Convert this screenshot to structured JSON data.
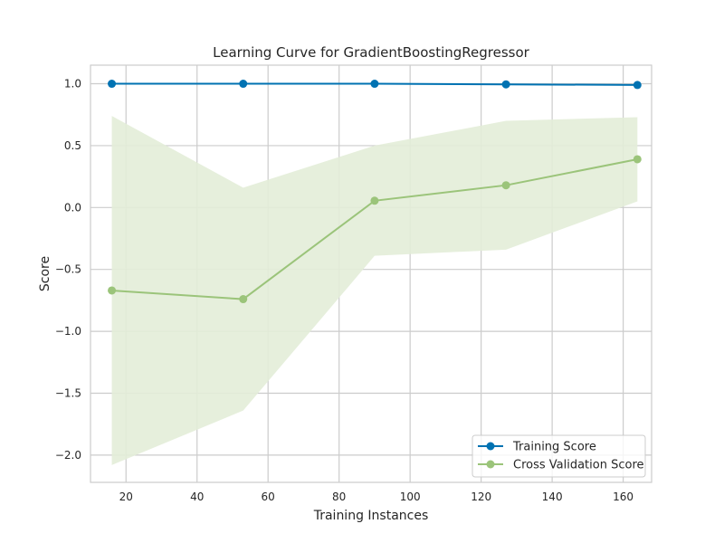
{
  "chart_data": {
    "type": "line",
    "title": "Learning Curve for GradientBoostingRegressor",
    "xlabel": "Training Instances",
    "ylabel": "Score",
    "xlim": [
      10,
      168
    ],
    "ylim": [
      -2.22,
      1.15
    ],
    "xticks": [
      20,
      40,
      60,
      80,
      100,
      120,
      140,
      160
    ],
    "yticks": [
      1.0,
      0.5,
      0.0,
      -0.5,
      -1.0,
      -1.5,
      -2.0
    ],
    "ytick_labels": [
      "1.0",
      "0.5",
      "0.0",
      "−0.5",
      "−1.0",
      "−1.5",
      "−2.0"
    ],
    "x": [
      16,
      53,
      90,
      127,
      164
    ],
    "series": [
      {
        "name": "Training Score",
        "color": "#0072b2",
        "values": [
          1.0,
          1.0,
          1.0,
          0.995,
          0.99
        ],
        "band_upper": [
          1.0,
          1.0,
          1.0,
          0.995,
          0.99
        ],
        "band_lower": [
          1.0,
          1.0,
          1.0,
          0.995,
          0.99
        ]
      },
      {
        "name": "Cross Validation Score",
        "color": "#9bc47a",
        "band_color": "#e3edd8",
        "values": [
          -0.67,
          -0.74,
          0.055,
          0.18,
          0.39
        ],
        "band_upper": [
          0.74,
          0.16,
          0.5,
          0.7,
          0.73
        ],
        "band_lower": [
          -2.08,
          -1.64,
          -0.39,
          -0.34,
          0.05
        ]
      }
    ],
    "grid": true,
    "legend_position": "bottom-right"
  }
}
